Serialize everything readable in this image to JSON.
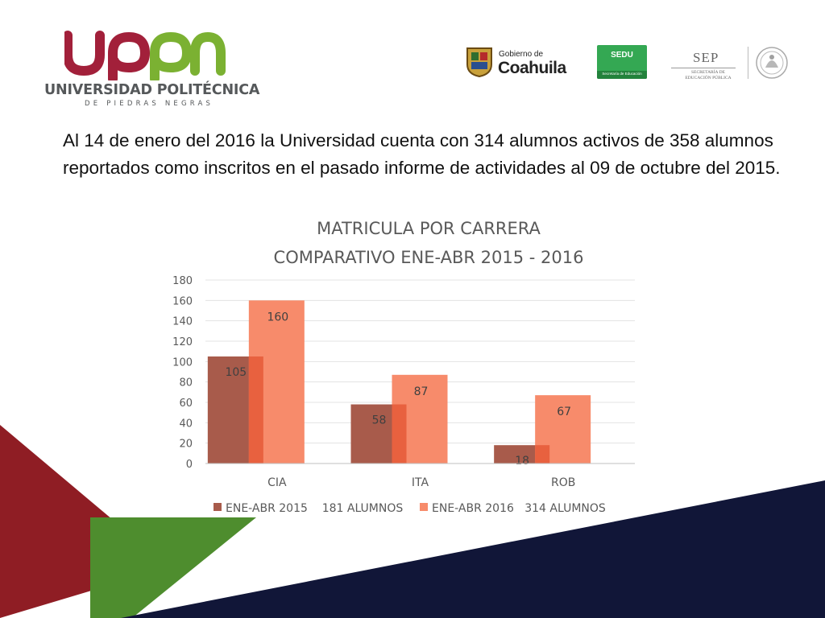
{
  "slide": {
    "logo": {
      "mark_text": "uppn",
      "university_name": "UNIVERSIDAD POLITÉCNICA",
      "university_sub": "DE PIEDRAS NEGRAS"
    },
    "government_logos": {
      "coahuila_small": "Gobierno de",
      "coahuila_big": "Coahuila",
      "sedu_title": "SEDU",
      "sedu_sub": "Secretaría de Educación",
      "sep_title": "SEP",
      "sep_sub_line1": "SECRETARÍA DE",
      "sep_sub_line2": "EDUCACIÓN PÚBLICA"
    },
    "intro_text": "Al 14 de enero del 2016 la Universidad cuenta con 314 alumnos activos de 358 alumnos reportados como inscritos en el pasado informe de actividades al 09 de octubre del 2015."
  },
  "colors": {
    "series_2015": "#a85b4b",
    "series_2016": "#f78b6b",
    "overlap": "#e8613f",
    "decor_red": "#8f1d24",
    "decor_green": "#4e8d2e",
    "decor_navy": "#111638"
  },
  "chart_data": {
    "type": "bar",
    "title": "MATRICULA POR CARRERA",
    "subtitle": "COMPARATIVO ENE-ABR  2015 - 2016",
    "categories": [
      "CIA",
      "ITA",
      "ROB"
    ],
    "series": [
      {
        "name": "ENE-ABR 2015    181 ALUMNOS",
        "values": [
          105,
          58,
          18
        ]
      },
      {
        "name": "ENE-ABR 2016   314 ALUMNOS",
        "values": [
          160,
          87,
          67
        ]
      }
    ],
    "ylim": [
      0,
      180
    ],
    "yticks": [
      0,
      20,
      40,
      60,
      80,
      100,
      120,
      140,
      160,
      180
    ],
    "xlabel": "",
    "ylabel": "",
    "grid": true,
    "legend_position": "bottom",
    "data_labels": true
  }
}
